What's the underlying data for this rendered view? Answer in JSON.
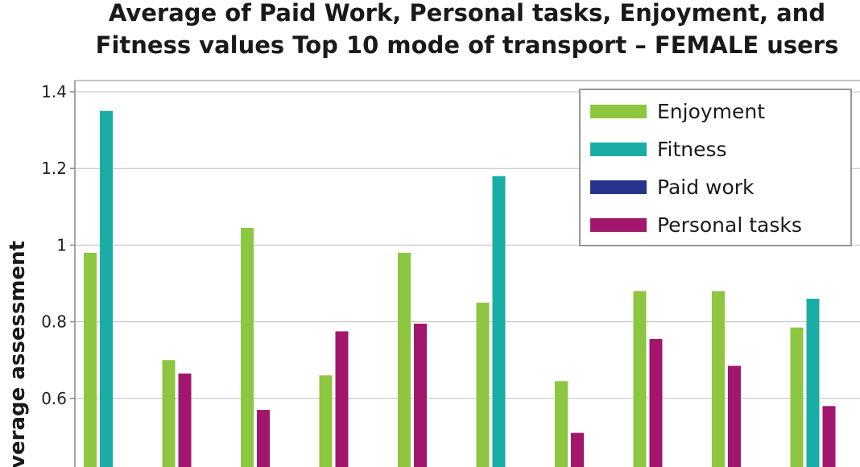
{
  "chart_data": {
    "type": "bar",
    "title_lines": [
      "Average of Paid Work, Personal tasks, Enjoyment, and",
      "Fitness values Top 10 mode of transport – FEMALE users"
    ],
    "ylabel": "Average assessment",
    "yticks": [
      "1.4",
      "1.2",
      "1",
      "0.8",
      "0.6"
    ],
    "ylim_visible": [
      0.4,
      1.4
    ],
    "grid": true,
    "legend_position": "top-right",
    "colors": {
      "Enjoyment": "#8dc63f",
      "Fitness": "#1aada5",
      "Paid work": "#27348b",
      "Personal tasks": "#a3166e"
    },
    "series": [
      {
        "name": "Enjoyment",
        "values": [
          0.98,
          0.7,
          1.045,
          0.66,
          0.98,
          0.85,
          0.645,
          0.88,
          0.88,
          0.785
        ]
      },
      {
        "name": "Fitness",
        "values": [
          1.35,
          null,
          null,
          null,
          null,
          1.18,
          null,
          null,
          null,
          0.86
        ]
      },
      {
        "name": "Paid work",
        "values": [
          null,
          null,
          null,
          null,
          null,
          null,
          null,
          null,
          null,
          null
        ]
      },
      {
        "name": "Personal tasks",
        "values": [
          null,
          0.665,
          0.57,
          0.775,
          0.795,
          null,
          0.51,
          0.755,
          0.685,
          0.58
        ]
      }
    ]
  }
}
